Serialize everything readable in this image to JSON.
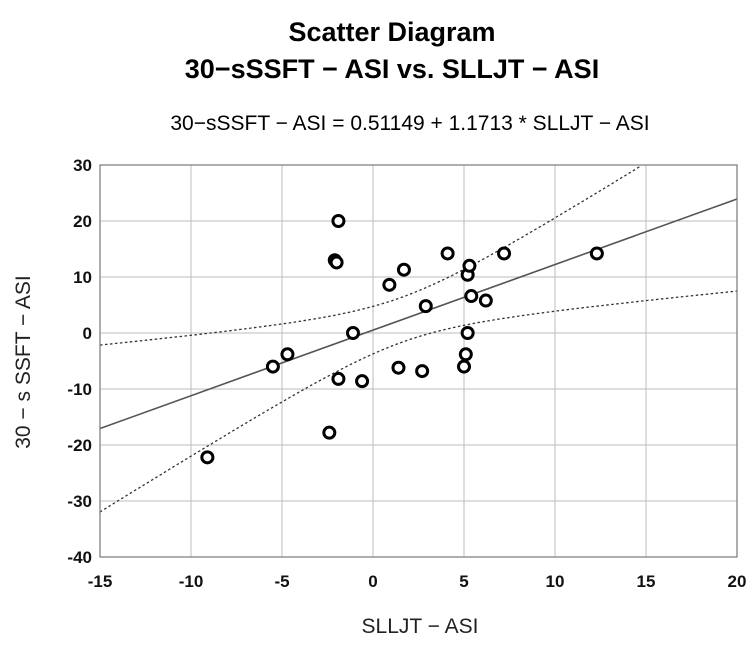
{
  "chart_data": {
    "type": "scatter",
    "title": "Scatter Diagram",
    "subtitle": "30−sSSFT − ASI vs. SLLJT − ASI",
    "equation": "30−sSSFT − ASI = 0.51149 + 1.1713 * SLLJT − ASI",
    "xlabel": "SLLJT − ASI",
    "ylabel": "30 − s SSFT − ASI",
    "xlim": [
      -15,
      20
    ],
    "ylim": [
      -40,
      30
    ],
    "xticks": [
      "-15",
      "-10",
      "-5",
      "0",
      "5",
      "10",
      "15",
      "20"
    ],
    "yticks": [
      "30",
      "20",
      "10",
      "0",
      "-10",
      "-20",
      "-30",
      "-40"
    ],
    "grid": true,
    "fit": {
      "intercept": 0.51149,
      "slope": 1.1713
    },
    "confidence_band": true,
    "colors": {
      "points": "#000000",
      "fit_line": "#555555",
      "band": "#333333",
      "grid": "#bdbdbd"
    },
    "points": [
      {
        "x": -9.1,
        "y": -22.2
      },
      {
        "x": -5.5,
        "y": -6.0
      },
      {
        "x": -4.7,
        "y": -3.8
      },
      {
        "x": -2.4,
        "y": -17.8
      },
      {
        "x": -2.1,
        "y": 13.0
      },
      {
        "x": -2.0,
        "y": 12.6
      },
      {
        "x": -1.9,
        "y": 20.0
      },
      {
        "x": -1.9,
        "y": -8.2
      },
      {
        "x": -1.1,
        "y": 0.0
      },
      {
        "x": -0.6,
        "y": -8.6
      },
      {
        "x": 0.9,
        "y": 8.6
      },
      {
        "x": 1.4,
        "y": -6.2
      },
      {
        "x": 1.7,
        "y": 11.3
      },
      {
        "x": 2.7,
        "y": -6.8
      },
      {
        "x": 2.9,
        "y": 4.8
      },
      {
        "x": 4.1,
        "y": 14.2
      },
      {
        "x": 5.0,
        "y": -6.0
      },
      {
        "x": 5.1,
        "y": -3.8
      },
      {
        "x": 5.2,
        "y": 0.0
      },
      {
        "x": 5.2,
        "y": 10.4
      },
      {
        "x": 5.3,
        "y": 12.0
      },
      {
        "x": 5.4,
        "y": 6.6
      },
      {
        "x": 6.2,
        "y": 5.8
      },
      {
        "x": 7.2,
        "y": 14.2
      },
      {
        "x": 12.3,
        "y": 14.2
      }
    ]
  }
}
